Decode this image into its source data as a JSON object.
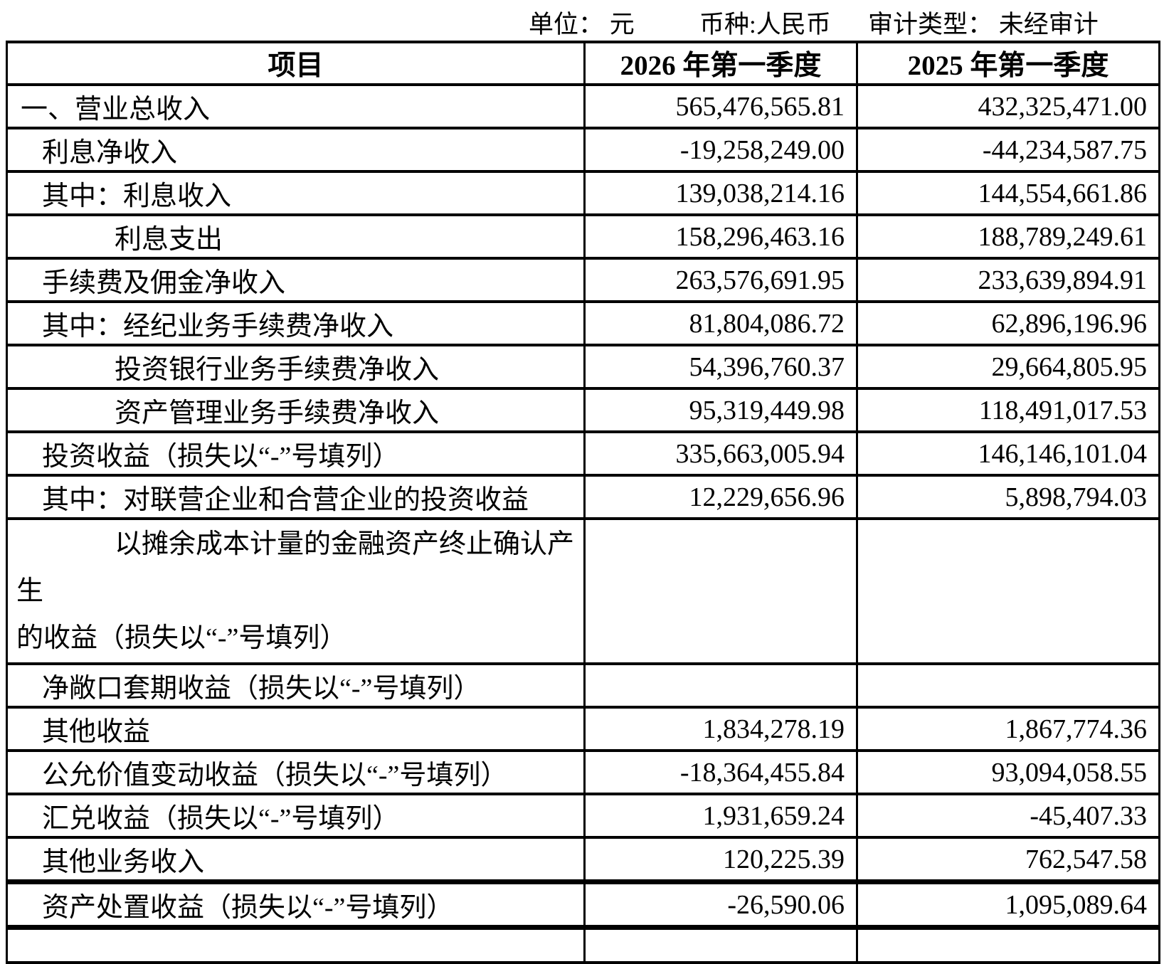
{
  "caption": {
    "unit": "单位： 元",
    "currency": "币种:人民币",
    "audit": "审计类型： 未经审计"
  },
  "table": {
    "headers": [
      "项目",
      "2026 年第一季度",
      "2025 年第一季度"
    ],
    "rows": [
      {
        "label": "一、营业总收入",
        "indent": 0,
        "v2026": "565,476,565.81",
        "v2025": "432,325,471.00"
      },
      {
        "label": "利息净收入",
        "indent": 1,
        "v2026": "-19,258,249.00",
        "v2025": "-44,234,587.75"
      },
      {
        "label": "其中：利息收入",
        "indent": 1,
        "v2026": "139,038,214.16",
        "v2025": "144,554,661.86"
      },
      {
        "label": "利息支出",
        "indent": 2,
        "v2026": "158,296,463.16",
        "v2025": "188,789,249.61"
      },
      {
        "label": "手续费及佣金净收入",
        "indent": 1,
        "v2026": "263,576,691.95",
        "v2025": "233,639,894.91"
      },
      {
        "label": "其中：经纪业务手续费净收入",
        "indent": 1,
        "v2026": "81,804,086.72",
        "v2025": "62,896,196.96"
      },
      {
        "label": "投资银行业务手续费净收入",
        "indent": 2,
        "v2026": "54,396,760.37",
        "v2025": "29,664,805.95"
      },
      {
        "label": "资产管理业务手续费净收入",
        "indent": 2,
        "v2026": "95,319,449.98",
        "v2025": "118,491,017.53"
      },
      {
        "label": "投资收益（损失以“-”号填列）",
        "indent": 1,
        "v2026": "335,663,005.94",
        "v2025": "146,146,101.04"
      },
      {
        "label": "其中：对联营企业和合营企业的投资收益",
        "indent": 1,
        "v2026": "12,229,656.96",
        "v2025": "5,898,794.03"
      },
      {
        "label": "以摊余成本计量的金融资产终止确认产生\n的收益（损失以“-”号填列）",
        "indent": 1,
        "hanging": true,
        "tall": true,
        "v2026": "",
        "v2025": ""
      },
      {
        "label": "净敞口套期收益（损失以“-”号填列）",
        "indent": 1,
        "v2026": "",
        "v2025": ""
      },
      {
        "label": "其他收益",
        "indent": 1,
        "v2026": "1,834,278.19",
        "v2025": "1,867,774.36"
      },
      {
        "label": "公允价值变动收益（损失以“-”号填列）",
        "indent": 1,
        "v2026": "-18,364,455.84",
        "v2025": "93,094,058.55"
      },
      {
        "label": "汇兑收益（损失以“-”号填列）",
        "indent": 1,
        "v2026": "1,931,659.24",
        "v2025": "-45,407.33"
      },
      {
        "label": "其他业务收入",
        "indent": 1,
        "v2026": "120,225.39",
        "v2025": "762,547.58",
        "thick_bottom": true
      },
      {
        "label": "资产处置收益（损失以“-”号填列）",
        "indent": 1,
        "v2026": "-26,590.06",
        "v2025": "1,095,089.64",
        "thick_bottom": true
      },
      {
        "label": "",
        "indent": 1,
        "v2026": "",
        "v2025": "",
        "partial": true
      }
    ]
  }
}
